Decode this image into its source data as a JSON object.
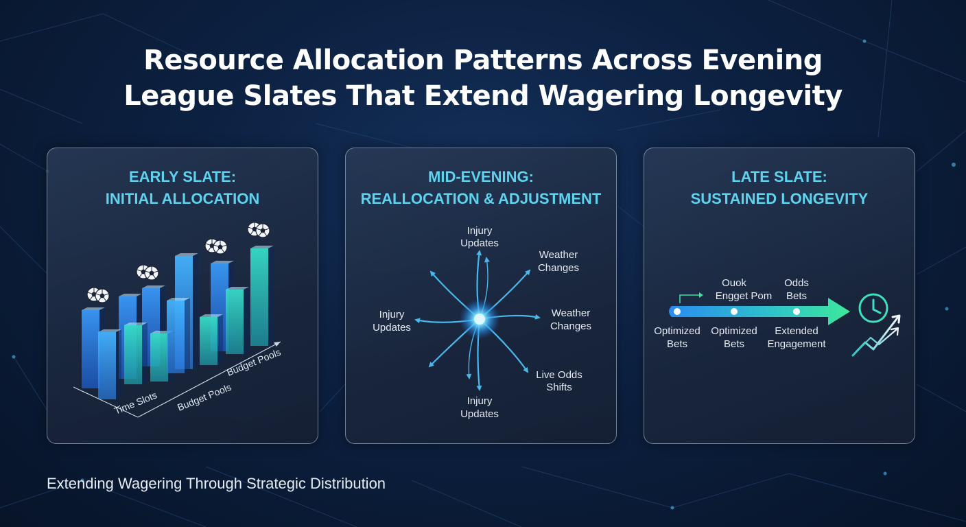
{
  "title": {
    "line1": "Resource Allocation Patterns Across Evening",
    "line2": "League Slates That Extend Wagering Longevity"
  },
  "panels": {
    "early": {
      "heading_line1": "EARLY SLATE:",
      "heading_line2": "INITIAL ALLOCATION",
      "axis_x_label": "Time Slots",
      "axis_y_label_front": "Budget Pools",
      "axis_y_label_back": "Budget Pools",
      "icon": "soccer-ball-icon"
    },
    "mid": {
      "heading_line1": "MID-EVENING:",
      "heading_line2": "REALLOCATION & ADJUSTMENT",
      "labels": {
        "top": [
          "Injury",
          "Updates"
        ],
        "top_right": [
          "Weather",
          "Changes"
        ],
        "right": [
          "Weather",
          "Changes"
        ],
        "bottom_right": [
          "Live Odds",
          "Shifts"
        ],
        "bottom": [
          "Injury",
          "Updates"
        ],
        "left": [
          "Injury",
          "Updates"
        ]
      }
    },
    "late": {
      "heading_line1": "LATE SLATE:",
      "heading_line2": "SUSTAINED LONGEVITY",
      "top_labels": [
        [
          "Ouok",
          "Engget Pom"
        ],
        [
          "Odds",
          "Bets"
        ]
      ],
      "bottom_labels": [
        [
          "Optimized",
          "Bets"
        ],
        [
          "Optimized",
          "Bets"
        ],
        [
          "Extended",
          "Engagement"
        ]
      ],
      "icons": [
        "clock-icon",
        "trend-up-icon"
      ]
    }
  },
  "footer": "Extending Wagering Through Strategic Distribution",
  "colors": {
    "accent_cyan": "#5fd2ee",
    "accent_green": "#3ee0a0",
    "bar_blue": "#2f86f0",
    "bar_teal": "#32d6c8"
  }
}
